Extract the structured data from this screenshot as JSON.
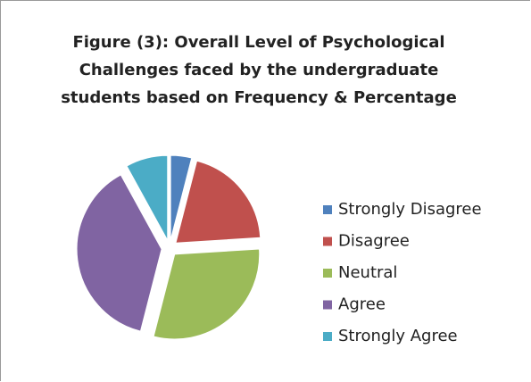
{
  "chart_data": {
    "type": "pie",
    "title": "Figure (3): Overall Level of Psychological Challenges faced by the undergraduate students based on Frequency & Percentage",
    "categories": [
      "Strongly Disagree",
      "Disagree",
      "Neutral",
      "Agree",
      "Strongly Agree"
    ],
    "values": [
      4,
      20,
      30,
      38,
      8
    ],
    "colors": [
      "#4f81bd",
      "#c0504d",
      "#9bbb59",
      "#8064a2",
      "#4bacc6"
    ],
    "legend": "right"
  }
}
